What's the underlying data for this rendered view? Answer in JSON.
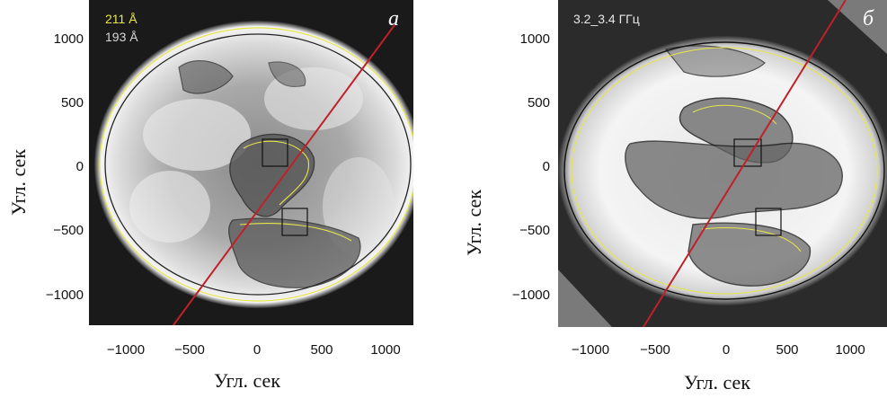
{
  "panel_a": {
    "letter": "a",
    "legend": [
      "211 Å",
      "193 Å"
    ],
    "legend_colors": [
      "#e6e64a",
      "#d8d8d8"
    ],
    "ylabel": "Угл. сек",
    "xlabel": "Угл. сек",
    "yticks": [
      "1000",
      "500",
      "0",
      "−500",
      "−1000"
    ],
    "xticks": [
      "−1000",
      "−500",
      "0",
      "500",
      "1000"
    ]
  },
  "panel_b": {
    "letter": "б",
    "legend": [
      "3.2_3.4 ГГц"
    ],
    "ylabel": "Угл. сек",
    "xlabel": "Угл. сек",
    "yticks": [
      "1000",
      "500",
      "0",
      "−500",
      "−1000"
    ],
    "xticks": [
      "−1000",
      "−500",
      "0",
      "500",
      "1000"
    ]
  },
  "colors": {
    "slice_line": "#c0202a",
    "contour_yellow": "#e6e64a",
    "contour_black": "#111111"
  }
}
